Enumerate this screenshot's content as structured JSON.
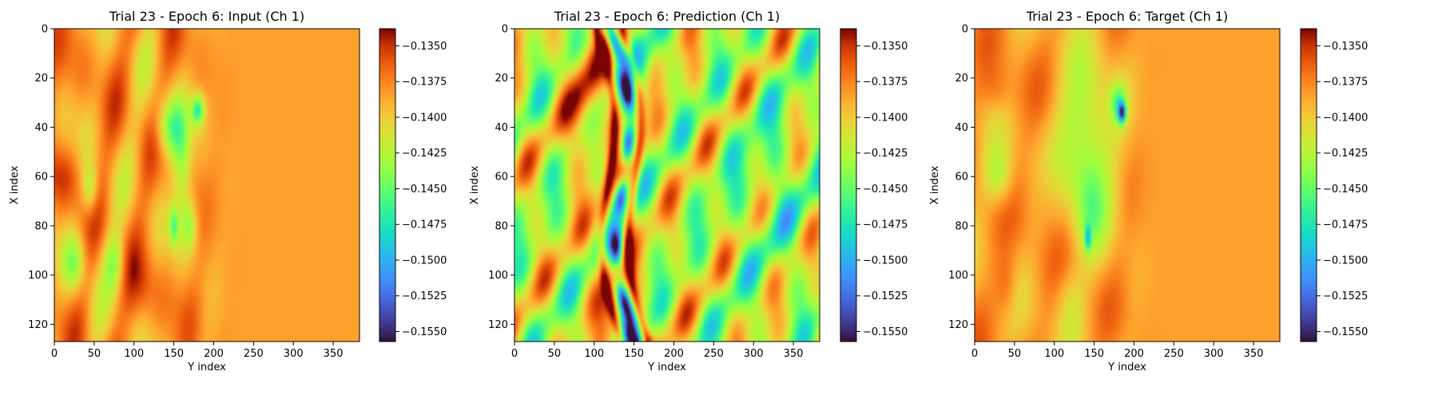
{
  "chart_data": [
    {
      "type": "heatmap",
      "title": "Trial 23 - Epoch 6: Input (Ch 1)",
      "xlabel": "Y index",
      "ylabel": "X index",
      "xlim": [
        0,
        383
      ],
      "ylim": [
        127,
        0
      ],
      "x_ticks": [
        "0",
        "50",
        "100",
        "150",
        "200",
        "250",
        "300",
        "350"
      ],
      "y_ticks": [
        "0",
        "20",
        "40",
        "60",
        "80",
        "100",
        "120"
      ],
      "colorbar": {
        "colormap": "turbo",
        "vmin": -0.1557,
        "vmax": -0.1338,
        "ticks": [
          "−0.1350",
          "−0.1375",
          "−0.1400",
          "−0.1425",
          "−0.1450",
          "−0.1475",
          "−0.1500",
          "−0.1525",
          "−0.1550"
        ]
      },
      "field_description": "turbulent orange/red band for Y<150 with green patches and a blue vortex near (Y=180,X=33), uniform orange-yellow (~-0.1405) for Y>200"
    },
    {
      "type": "heatmap",
      "title": "Trial 23 - Epoch 6: Prediction (Ch 1)",
      "xlabel": "Y index",
      "ylabel": "X index",
      "xlim": [
        0,
        383
      ],
      "ylim": [
        127,
        0
      ],
      "x_ticks": [
        "0",
        "50",
        "100",
        "150",
        "200",
        "250",
        "300",
        "350"
      ],
      "y_ticks": [
        "0",
        "20",
        "40",
        "60",
        "80",
        "100",
        "120"
      ],
      "colorbar": {
        "colormap": "turbo",
        "vmin": -0.1557,
        "vmax": -0.1338,
        "ticks": [
          "−0.1350",
          "−0.1375",
          "−0.1400",
          "−0.1425",
          "−0.1450",
          "−0.1475",
          "−0.1500",
          "−0.1525",
          "−0.1550"
        ]
      },
      "field_description": "highly oscillatory field with dark blue and dark red streaks along Y=100-180, wavy green/cyan/orange pattern elsewhere"
    },
    {
      "type": "heatmap",
      "title": "Trial 23 - Epoch 6: Target (Ch 1)",
      "xlabel": "Y index",
      "ylabel": "X index",
      "xlim": [
        0,
        383
      ],
      "ylim": [
        127,
        0
      ],
      "x_ticks": [
        "0",
        "50",
        "100",
        "150",
        "200",
        "250",
        "300",
        "350"
      ],
      "y_ticks": [
        "0",
        "20",
        "40",
        "60",
        "80",
        "100",
        "120"
      ],
      "colorbar": {
        "colormap": "turbo",
        "vmin": -0.1557,
        "vmax": -0.1338,
        "ticks": [
          "−0.1350",
          "−0.1375",
          "−0.1400",
          "−0.1425",
          "−0.1450",
          "−0.1475",
          "−0.1500",
          "−0.1525",
          "−0.1550"
        ]
      },
      "field_description": "large green/cyan plume centered near (Y=140,X=45) with dark vortex at (Y=185,X=34), orange patches at left, uniform orange-yellow for Y>200"
    }
  ]
}
